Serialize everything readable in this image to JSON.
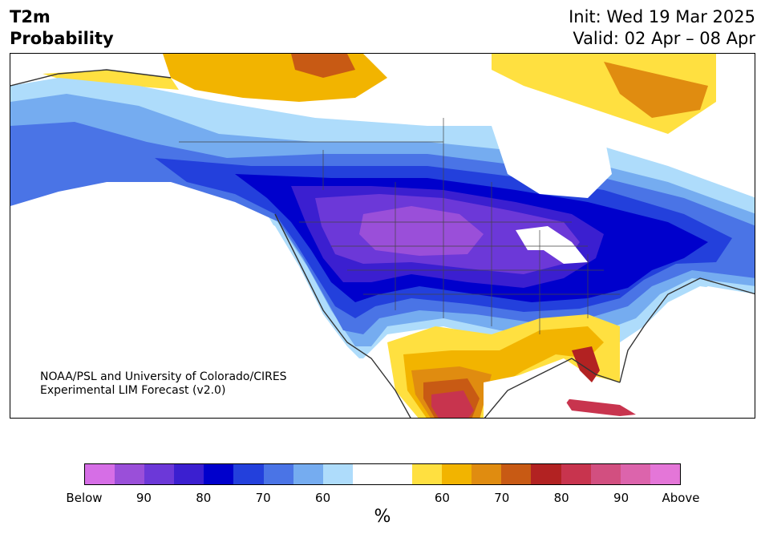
{
  "header": {
    "title_line1": "T2m",
    "title_line2": "Probability",
    "init": "Init: Wed 19 Mar 2025",
    "valid": "Valid: 02 Apr – 08 Apr"
  },
  "credit": {
    "line1": "NOAA/PSL and University of Colorado/CIRES",
    "line2": "Experimental LIM Forecast (v2.0)"
  },
  "colorbar": {
    "unit": "%",
    "tick_labels": [
      "Below",
      "90",
      "80",
      "70",
      "60",
      "60",
      "70",
      "80",
      "90",
      "Above"
    ],
    "colors": [
      "#d66ee6",
      "#9a4fd9",
      "#6c38d8",
      "#3b1fd0",
      "#0000cc",
      "#2340dc",
      "#4a74e6",
      "#75acf0",
      "#aedcfb",
      "#ffffff",
      "#ffffff",
      "#ffe040",
      "#f2b400",
      "#e08c10",
      "#c85a14",
      "#b22222",
      "#c8344e",
      "#d24f80",
      "#dc64ac",
      "#e476d8"
    ]
  },
  "map": {
    "region": "North America",
    "palette": {
      "deep_purple": "#9a4fd9",
      "purple": "#6c38d8",
      "indigo": "#3b1fd0",
      "blue": "#0000cc",
      "mid_blue": "#2340dc",
      "light_blue": "#4a74e6",
      "pale_blue": "#75acf0",
      "sky": "#aedcfb",
      "yellow": "#ffe040",
      "gold": "#f2b400",
      "orange": "#e08c10",
      "burnt": "#c85a14",
      "red": "#b22222",
      "crimson": "#c8344e"
    }
  }
}
